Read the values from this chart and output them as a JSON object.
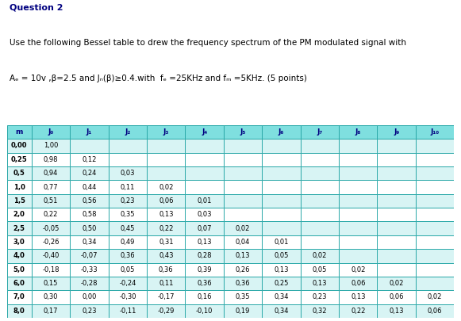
{
  "title_q": "Question 2",
  "line1": "Use the following Bessel table to drew the frequency spectrum of the PM modulated signal with",
  "line2": "Aₑ = 10v ,β=2.5 and Jₙ(β)≥0.4.with  fₑ =25KHz and fₘ =5KHz. (5 points)",
  "col_headers": [
    "m",
    "J₀",
    "J₁",
    "J₂",
    "J₃",
    "J₄",
    "J₅",
    "J₆",
    "J₇",
    "J₈",
    "J₉",
    "J₁₀"
  ],
  "rows": [
    [
      "0,00",
      "1,00",
      "",
      "",
      "",
      "",
      "",
      "",
      "",
      "",
      "",
      ""
    ],
    [
      "0,25",
      "0,98",
      "0,12",
      "",
      "",
      "",
      "",
      "",
      "",
      "",
      "",
      ""
    ],
    [
      "0,5",
      "0,94",
      "0,24",
      "0,03",
      "",
      "",
      "",
      "",
      "",
      "",
      "",
      ""
    ],
    [
      "1,0",
      "0,77",
      "0,44",
      "0,11",
      "0,02",
      "",
      "",
      "",
      "",
      "",
      "",
      ""
    ],
    [
      "1,5",
      "0,51",
      "0,56",
      "0,23",
      "0,06",
      "0,01",
      "",
      "",
      "",
      "",
      "",
      ""
    ],
    [
      "2,0",
      "0,22",
      "0,58",
      "0,35",
      "0,13",
      "0,03",
      "",
      "",
      "",
      "",
      "",
      ""
    ],
    [
      "2,5",
      "-0,05",
      "0,50",
      "0,45",
      "0,22",
      "0,07",
      "0,02",
      "",
      "",
      "",
      "",
      ""
    ],
    [
      "3,0",
      "-0,26",
      "0,34",
      "0,49",
      "0,31",
      "0,13",
      "0,04",
      "0,01",
      "",
      "",
      "",
      ""
    ],
    [
      "4,0",
      "-0,40",
      "-0,07",
      "0,36",
      "0,43",
      "0,28",
      "0,13",
      "0,05",
      "0,02",
      "",
      "",
      ""
    ],
    [
      "5,0",
      "-0,18",
      "-0,33",
      "0,05",
      "0,36",
      "0,39",
      "0,26",
      "0,13",
      "0,05",
      "0,02",
      "",
      ""
    ],
    [
      "6,0",
      "0,15",
      "-0,28",
      "-0,24",
      "0,11",
      "0,36",
      "0,36",
      "0,25",
      "0,13",
      "0,06",
      "0,02",
      ""
    ],
    [
      "7,0",
      "0,30",
      "0,00",
      "-0,30",
      "-0,17",
      "0,16",
      "0,35",
      "0,34",
      "0,23",
      "0,13",
      "0,06",
      "0,02"
    ],
    [
      "8,0",
      "0,17",
      "0,23",
      "-0,11",
      "-0,29",
      "-0,10",
      "0,19",
      "0,34",
      "0,32",
      "0,22",
      "0,13",
      "0,06"
    ]
  ],
  "header_bg": "#7FDFDF",
  "header_text": "#000080",
  "row_bg_light": "#D8F4F4",
  "row_bg_white": "#FFFFFF",
  "border_color": "#2AA8A8",
  "bg_color": "#FFFFFF",
  "title_color": "#000080",
  "text_color": "#000000"
}
